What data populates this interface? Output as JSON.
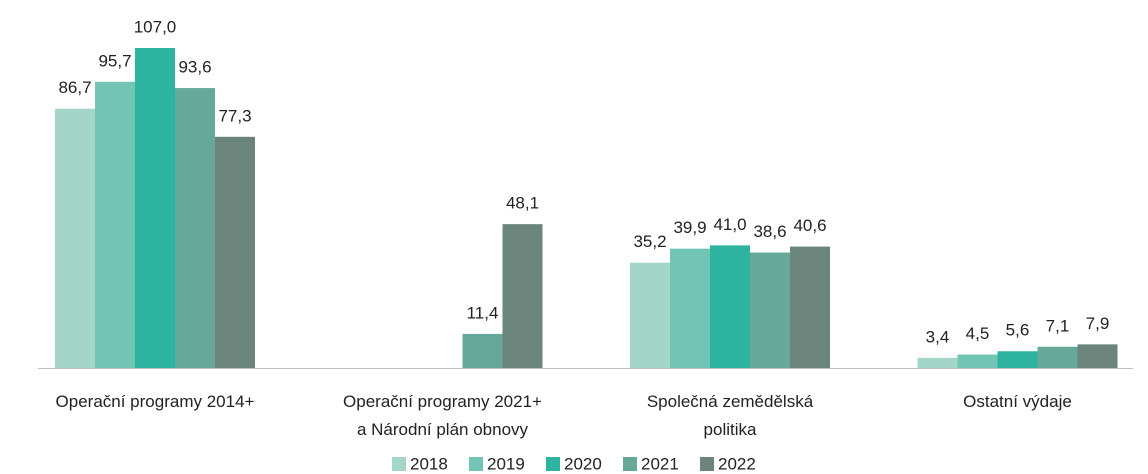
{
  "chart_data": {
    "type": "bar",
    "categories": [
      "Operační programy 2014+",
      "Operační programy 2021+\na Národní plán obnovy",
      "Společná zemědělská\npolitika",
      "Ostatní výdaje"
    ],
    "series": [
      {
        "name": "2018",
        "color": "#a3d5c9",
        "values": [
          86.7,
          null,
          35.2,
          3.4
        ],
        "value_labels": [
          "86,7",
          null,
          "35,2",
          "3,4"
        ]
      },
      {
        "name": "2019",
        "color": "#72c5b4",
        "values": [
          95.7,
          null,
          39.9,
          4.5
        ],
        "value_labels": [
          "95,7",
          null,
          "39,9",
          "4,5"
        ]
      },
      {
        "name": "2020",
        "color": "#2db3a0",
        "values": [
          107.0,
          null,
          41.0,
          5.6
        ],
        "value_labels": [
          "107,0",
          null,
          "41,0",
          "5,6"
        ]
      },
      {
        "name": "2021",
        "color": "#66a89a",
        "values": [
          93.6,
          11.4,
          38.6,
          7.1
        ],
        "value_labels": [
          "93,6",
          "11,4",
          "38,6",
          "7,1"
        ]
      },
      {
        "name": "2022",
        "color": "#6b857d",
        "values": [
          77.3,
          48.1,
          40.6,
          7.9
        ],
        "value_labels": [
          "77,3",
          "48,1",
          "40,6",
          "7,9"
        ]
      }
    ]
  }
}
